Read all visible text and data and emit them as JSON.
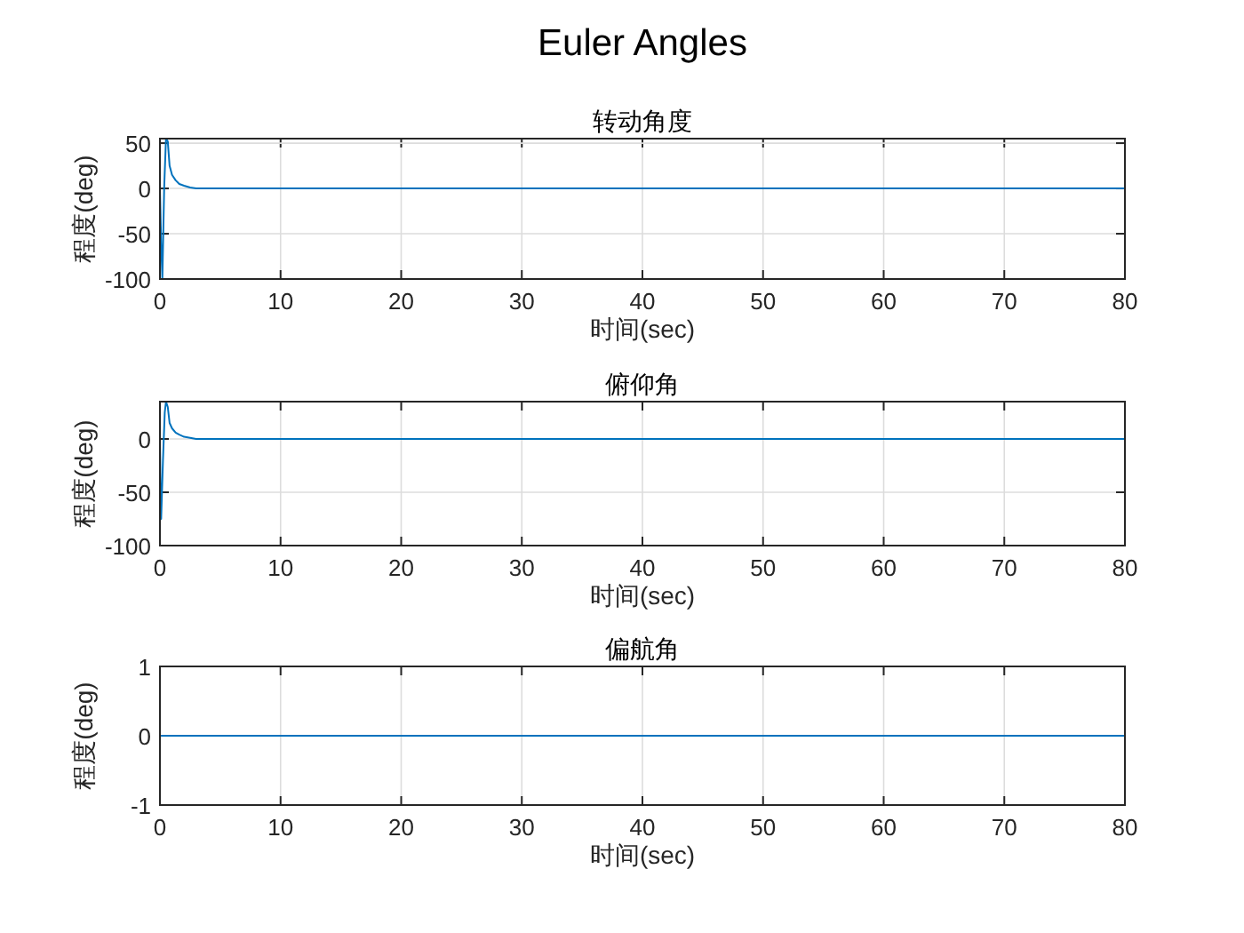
{
  "chart_data": [
    {
      "type": "line",
      "title": "Euler Angles",
      "subtitle": "转动角度",
      "xlabel": "时间(sec)",
      "ylabel": "程度(deg)",
      "xlim": [
        0,
        80
      ],
      "xticks": [
        0,
        10,
        20,
        30,
        40,
        50,
        60,
        70,
        80
      ],
      "ylim": [
        -100,
        55
      ],
      "yticks": [
        -100,
        -50,
        0,
        50
      ],
      "grid": true,
      "series": [
        {
          "color": "#0072bd",
          "x": [
            0,
            0.1,
            0.2,
            0.35,
            0.5,
            0.65,
            0.8,
            1,
            1.3,
            1.6,
            2,
            2.5,
            3,
            4,
            80
          ],
          "values": [
            0,
            -60,
            -100,
            0,
            55,
            52,
            25,
            15,
            9,
            5,
            3,
            1,
            0,
            0,
            0
          ]
        }
      ]
    },
    {
      "type": "line",
      "title": "俯仰角",
      "xlabel": "时间(sec)",
      "ylabel": "程度(deg)",
      "xlim": [
        0,
        80
      ],
      "xticks": [
        0,
        10,
        20,
        30,
        40,
        50,
        60,
        70,
        80
      ],
      "ylim": [
        -100,
        35
      ],
      "yticks": [
        -100,
        -50,
        0
      ],
      "grid": true,
      "series": [
        {
          "color": "#0072bd",
          "x": [
            0,
            0.05,
            0.1,
            0.25,
            0.4,
            0.5,
            0.65,
            0.8,
            1,
            1.3,
            1.6,
            2,
            2.5,
            3,
            4,
            80
          ],
          "values": [
            0,
            -50,
            -75,
            -20,
            25,
            35,
            30,
            15,
            10,
            6,
            4,
            2,
            1,
            0,
            0,
            0
          ]
        }
      ]
    },
    {
      "type": "line",
      "title": "偏航角",
      "xlabel": "时间(sec)",
      "ylabel": "程度(deg)",
      "xlim": [
        0,
        80
      ],
      "xticks": [
        0,
        10,
        20,
        30,
        40,
        50,
        60,
        70,
        80
      ],
      "ylim": [
        -1,
        1
      ],
      "yticks": [
        -1,
        0,
        1
      ],
      "grid": true,
      "series": [
        {
          "color": "#0072bd",
          "x": [
            0,
            80
          ],
          "values": [
            0,
            0
          ]
        }
      ]
    }
  ]
}
